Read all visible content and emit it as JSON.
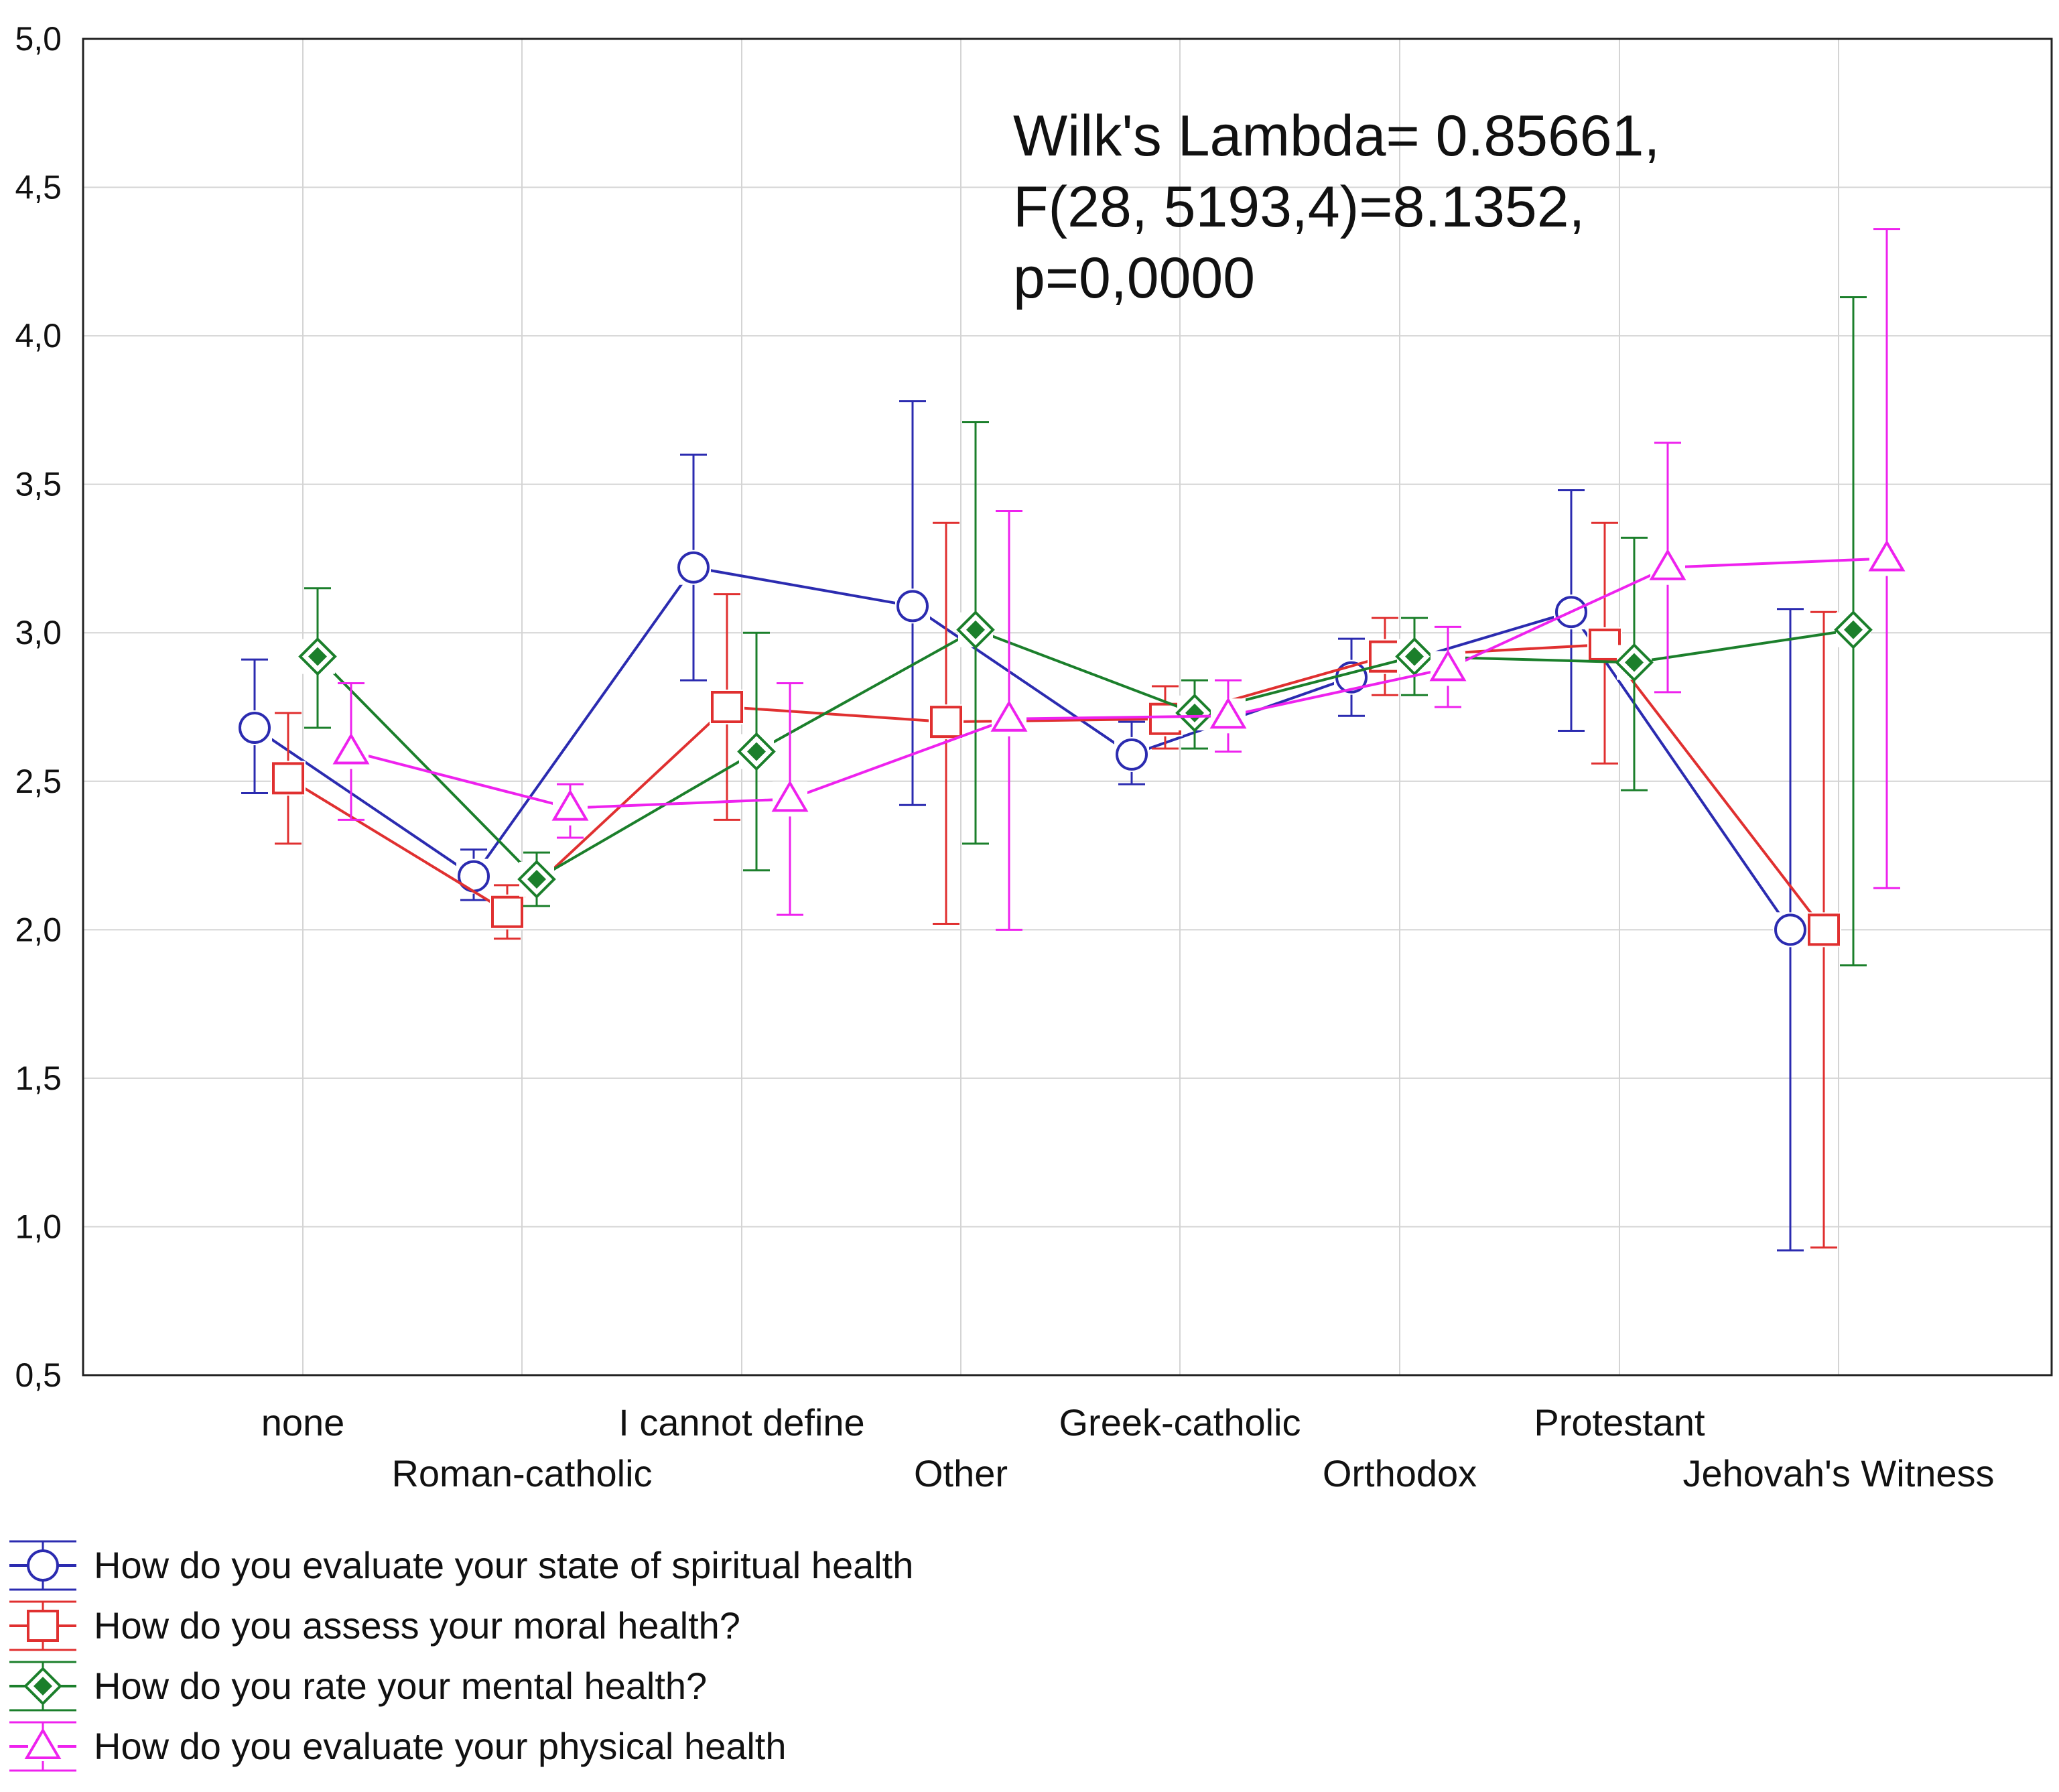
{
  "chart_data": {
    "type": "line",
    "title": "",
    "xlabel": "",
    "ylabel": "",
    "ylim": [
      0.5,
      5.0
    ],
    "yticks": [
      0.5,
      1.0,
      1.5,
      2.0,
      2.5,
      3.0,
      3.5,
      4.0,
      4.5,
      5.0
    ],
    "ytick_labels": [
      "0,5",
      "1,0",
      "1,5",
      "2,0",
      "2,5",
      "3,0",
      "3,5",
      "4,0",
      "4,5",
      "5,0"
    ],
    "grid": true,
    "categories": [
      "none",
      "Roman-catholic",
      "I cannot define",
      "Other",
      "Greek-catholic",
      "Orthodox",
      "Protestant",
      "Jehovah's Witness"
    ],
    "annotation": [
      "Wilk's Lambda= 0.85661,",
      "F(28, 5193,4)=8.1352,",
      "p=0,0000"
    ],
    "series": [
      {
        "name": "How do you evaluate your state of spiritual health",
        "color": "#2b2bb0",
        "marker": "circle",
        "values": [
          2.68,
          2.18,
          3.22,
          3.09,
          2.59,
          2.85,
          3.07,
          2.0
        ],
        "lower": [
          2.46,
          2.1,
          2.84,
          2.42,
          2.49,
          2.72,
          2.67,
          0.92
        ],
        "upper": [
          2.91,
          2.27,
          3.6,
          3.78,
          2.7,
          2.98,
          3.48,
          3.08
        ]
      },
      {
        "name": "How do you assess your moral health?",
        "color": "#e03030",
        "marker": "square",
        "values": [
          2.51,
          2.06,
          2.75,
          2.7,
          2.71,
          2.92,
          2.96,
          2.0
        ],
        "lower": [
          2.29,
          1.97,
          2.37,
          2.02,
          2.61,
          2.79,
          2.56,
          0.93
        ],
        "upper": [
          2.73,
          2.15,
          3.13,
          3.37,
          2.82,
          3.05,
          3.37,
          3.07
        ]
      },
      {
        "name": "How do you rate your mental health?",
        "color": "#1b7f2b",
        "marker": "diamond",
        "values": [
          2.92,
          2.17,
          2.6,
          3.01,
          2.73,
          2.92,
          2.9,
          3.01
        ],
        "lower": [
          2.68,
          2.08,
          2.2,
          2.29,
          2.61,
          2.79,
          2.47,
          1.88
        ],
        "upper": [
          3.15,
          2.26,
          3.0,
          3.71,
          2.84,
          3.05,
          3.32,
          4.13
        ]
      },
      {
        "name": "How do you evaluate your physical health",
        "color": "#ee22ee",
        "marker": "triangle",
        "values": [
          2.6,
          2.41,
          2.44,
          2.71,
          2.72,
          2.88,
          3.22,
          3.25
        ],
        "lower": [
          2.37,
          2.31,
          2.05,
          2.0,
          2.6,
          2.75,
          2.8,
          2.14
        ],
        "upper": [
          2.83,
          2.49,
          2.83,
          3.41,
          2.84,
          3.02,
          3.64,
          4.36
        ]
      }
    ]
  }
}
